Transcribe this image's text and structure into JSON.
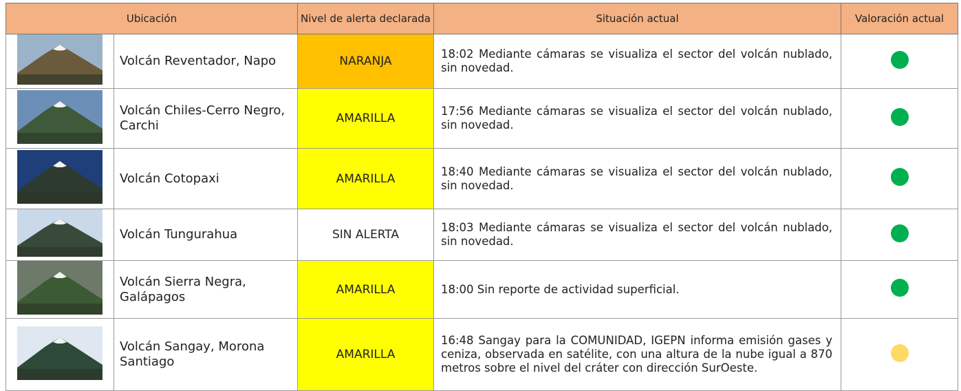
{
  "table": {
    "headers": [
      "Ubicación",
      "Nivel de alerta declarada",
      "Situación actual",
      "Valoración actual"
    ],
    "rows": [
      {
        "location": "Volcán Reventador, Napo",
        "alert": "NARANJA",
        "alert_color": "#ffc000",
        "situation": "18:02 Mediante cámaras se visualiza el sector del volcán nublado, sin novedad.",
        "indicator_color": "#00b050"
      },
      {
        "location": "Volcán Chiles-Cerro Negro, Carchi",
        "alert": "AMARILLA",
        "alert_color": "#ffff00",
        "situation": "17:56 Mediante cámaras se visualiza el sector del volcán nublado, sin novedad.",
        "indicator_color": "#00b050"
      },
      {
        "location": "Volcán Cotopaxi",
        "alert": "AMARILLA",
        "alert_color": "#ffff00",
        "situation": "18:40 Mediante cámaras se visualiza el sector del volcán nublado, sin novedad.",
        "indicator_color": "#00b050"
      },
      {
        "location": "Volcán Tungurahua",
        "alert": "SIN ALERTA",
        "alert_color": "#ffffff",
        "situation": "18:03 Mediante cámaras se visualiza el sector del volcán nublado, sin novedad.",
        "indicator_color": "#00b050"
      },
      {
        "location": "Volcán Sierra Negra, Galápagos",
        "alert": "AMARILLA",
        "alert_color": "#ffff00",
        "situation": "18:00 Sin reporte de actividad superficial.",
        "indicator_color": "#00b050"
      },
      {
        "location": "Volcán Sangay, Morona Santiago",
        "alert": "AMARILLA",
        "alert_color": "#ffff00",
        "situation": "16:48 Sangay para la COMUNIDAD, IGEPN informa emisión gases y ceniza, observada en satélite, con una altura de la nube igual a 870  metros sobre el nivel del cráter con dirección SurOeste.",
        "indicator_color": "#ffd966"
      }
    ]
  }
}
